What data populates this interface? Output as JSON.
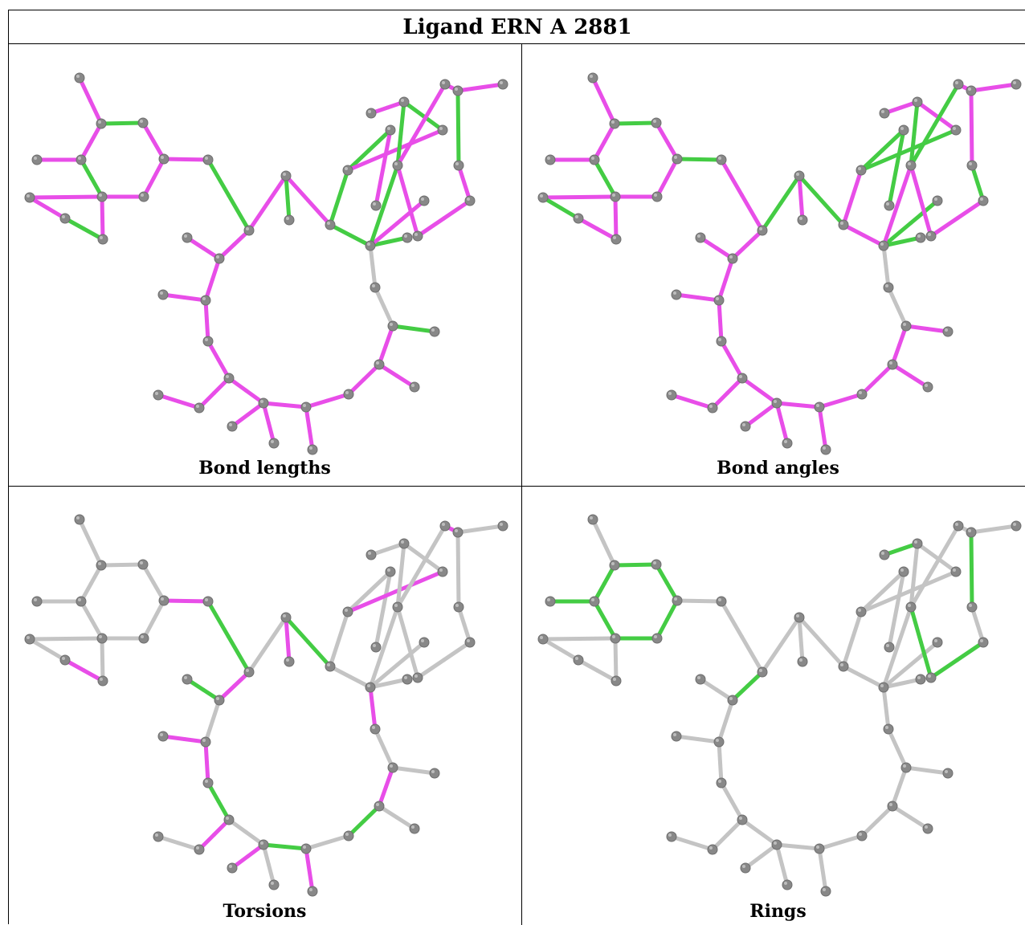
{
  "title": "Ligand ERN A 2881",
  "panels": [
    {
      "label": "Bond lengths"
    },
    {
      "label": "Bond angles"
    },
    {
      "label": "Torsions"
    },
    {
      "label": "Rings"
    }
  ],
  "colors": {
    "magenta": "#e84ee8",
    "green": "#44cc44",
    "grey_bond": "#c4c4c4",
    "atom": "#888888",
    "border": "#000000"
  }
}
